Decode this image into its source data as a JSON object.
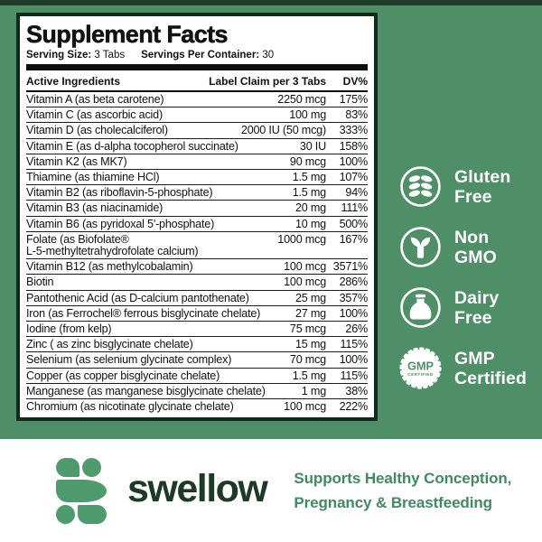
{
  "colors": {
    "background_green": "#4e8f67",
    "top_strip_green": "#1e3c29",
    "panel_border": "#112b1b",
    "logo_green": "#4f9b6d",
    "brand_dark_green": "#1d3a29",
    "tagline_green": "#3f8b60",
    "badge_text": "#ffffff"
  },
  "panel": {
    "title": "Supplement Facts",
    "serving_size_label": "Serving Size:",
    "serving_size_value": "3 Tabs",
    "servings_per_container_label": "Servings Per Container:",
    "servings_per_container_value": "30",
    "col_ingredient": "Active Ingredients",
    "col_claim": "Label Claim per 3 Tabs",
    "col_dv": "DV%",
    "ingredients": [
      {
        "name": "Vitamin A (as beta carotene)",
        "amount": "2250 mcg",
        "dv": "175%"
      },
      {
        "name": "Vitamin C (as ascorbic acid)",
        "amount": "100 mg",
        "dv": "83%"
      },
      {
        "name": "Vitamin D (as cholecalciferol)",
        "amount": "2000 IU (50 mcg)",
        "dv": "333%"
      },
      {
        "name": "Vitamin E (as d-alpha tocopherol succinate)",
        "amount": "30 IU",
        "dv": "158%"
      },
      {
        "name": "Vitamin K2 (as MK7)",
        "amount": "90 mcg",
        "dv": "100%"
      },
      {
        "name": "Thiamine (as thiamine HCl)",
        "amount": "1.5 mg",
        "dv": "107%"
      },
      {
        "name": "Vitamin B2 (as riboflavin-5-phosphate)",
        "amount": "1.5 mg",
        "dv": "94%"
      },
      {
        "name": "Vitamin B3 (as niacinamide)",
        "amount": "20 mg",
        "dv": "111%"
      },
      {
        "name": "Vitamin B6 (as  pyridoxal 5'-phosphate)",
        "amount": "10 mg",
        "dv": "500%"
      },
      {
        "name": "Folate (as Biofolate®",
        "name_line2": "L-5-methyltetrahydrofolate calcium)",
        "amount": "1000 mcg",
        "dv": "167%"
      },
      {
        "name": "Vitamin B12 (as methylcobalamin)",
        "amount": "100 mcg",
        "dv": "3571%"
      },
      {
        "name": "Biotin",
        "amount": "100 mcg",
        "dv": "286%"
      },
      {
        "name": "Pantothenic Acid (as D-calcium pantothenate)",
        "amount": "25 mg",
        "dv": "357%"
      },
      {
        "name": "Iron (as Ferrochel® ferrous bisglycinate chelate)",
        "amount": "27 mg",
        "dv": "100%"
      },
      {
        "name": "Iodine (from kelp)",
        "amount": "75 mcg",
        "dv": "26%"
      },
      {
        "name": "Zinc ( as zinc bisglycinate chelate)",
        "amount": "15 mg",
        "dv": "115%"
      },
      {
        "name": "Selenium (as selenium glycinate complex)",
        "amount": "70 mcg",
        "dv": "100%"
      },
      {
        "name": "Copper (as copper bisglycinate chelate)",
        "amount": "1.5 mg",
        "dv": "115%"
      },
      {
        "name": "Manganese (as manganese bisglycinate chelate)",
        "amount": "1 mg",
        "dv": "38%"
      },
      {
        "name": "Chromium (as nicotinate glycinate chelate)",
        "amount": "100 mcg",
        "dv": "222%"
      }
    ]
  },
  "badges": [
    {
      "icon": "wheat-icon",
      "line1": "Gluten",
      "line2": "Free"
    },
    {
      "icon": "sprout-icon",
      "line1": "Non",
      "line2": "GMO"
    },
    {
      "icon": "milk-bottle-icon",
      "line1": "Dairy",
      "line2": "Free"
    },
    {
      "icon": "gmp-seal-icon",
      "line1": "GMP",
      "line2": "Certified",
      "seal_text": "GMP",
      "seal_subtext": "CERTIFIED"
    }
  ],
  "footer": {
    "brand": "swellow",
    "tagline_line1": "Supports Healthy Conception,",
    "tagline_line2": "Pregnancy & Breastfeeding"
  }
}
